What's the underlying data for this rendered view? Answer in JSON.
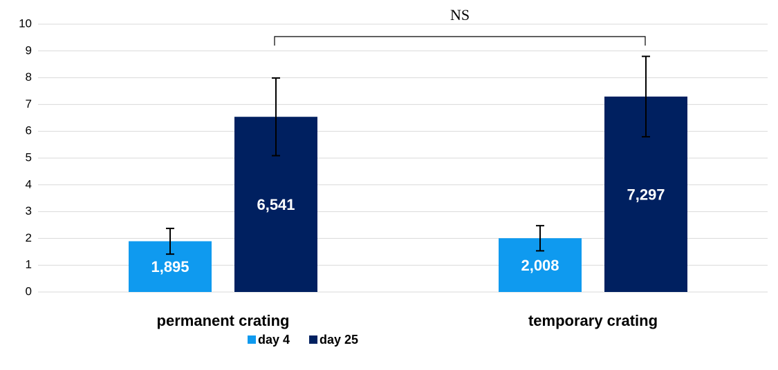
{
  "chart_data": {
    "type": "bar",
    "annotation": "NS",
    "categories": [
      "permanent crating",
      "temporary crating"
    ],
    "series": [
      {
        "name": "day 4",
        "color": "#0f9aef",
        "values": [
          1.895,
          2.008
        ],
        "value_labels": [
          "1,895",
          "2,008"
        ],
        "errors": [
          0.48,
          0.47
        ]
      },
      {
        "name": "day 25",
        "color": "#002060",
        "values": [
          6.541,
          7.297
        ],
        "value_labels": [
          "6,541",
          "7,297"
        ],
        "errors": [
          1.45,
          1.5
        ]
      }
    ],
    "ylim": [
      0,
      10
    ],
    "yticks": [
      0,
      1,
      2,
      3,
      4,
      5,
      6,
      7,
      8,
      9,
      10
    ],
    "grid": true,
    "legend": "bottom"
  }
}
